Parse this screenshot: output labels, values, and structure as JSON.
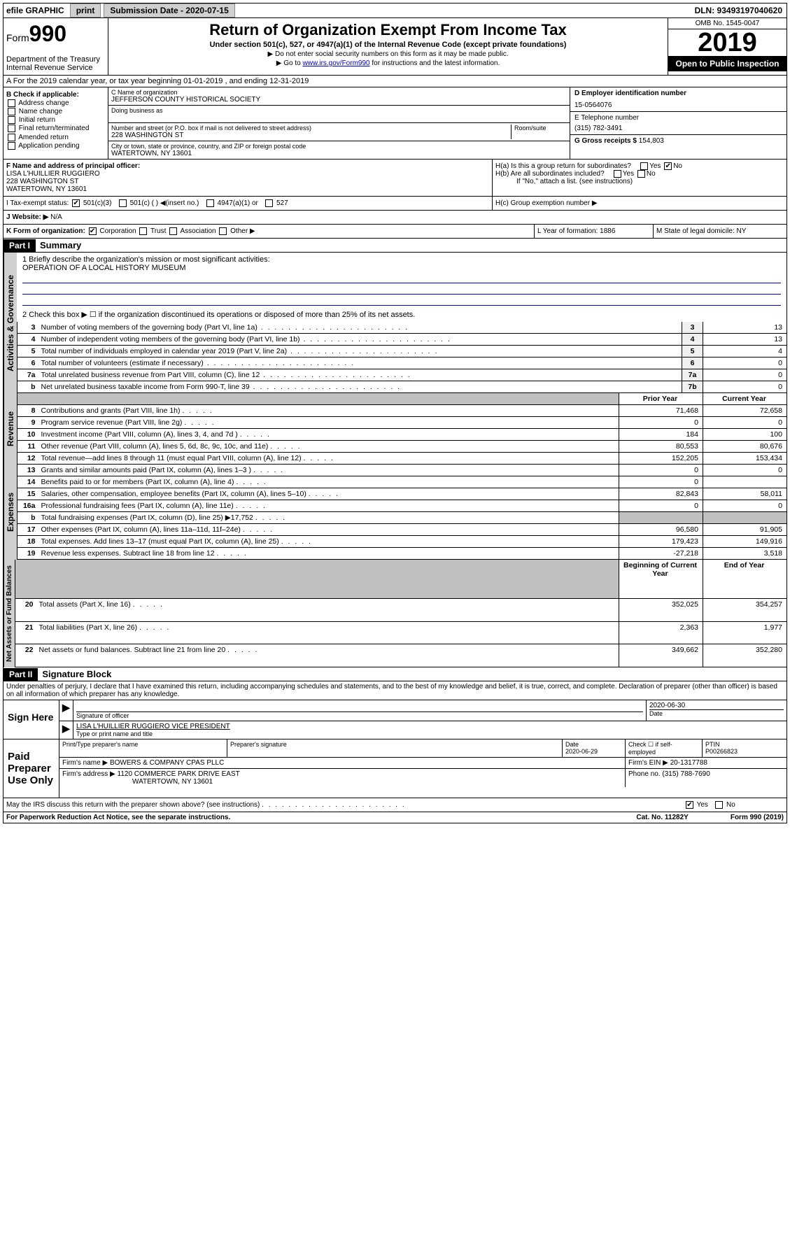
{
  "topbar": {
    "efile": "efile GRAPHIC",
    "print": "print",
    "sub_label": "Submission Date - 2020-07-15",
    "dln": "DLN: 93493197040620"
  },
  "header": {
    "form": "Form",
    "form_num": "990",
    "dept": "Department of the Treasury\nInternal Revenue Service",
    "title": "Return of Organization Exempt From Income Tax",
    "subtitle": "Under section 501(c), 527, or 4947(a)(1) of the Internal Revenue Code (except private foundations)",
    "note1": "▶ Do not enter social security numbers on this form as it may be made public.",
    "note2_pre": "▶ Go to ",
    "note2_link": "www.irs.gov/Form990",
    "note2_post": " for instructions and the latest information.",
    "omb": "OMB No. 1545-0047",
    "year": "2019",
    "open": "Open to Public Inspection"
  },
  "lineA": {
    "text": "A For the 2019 calendar year, or tax year beginning 01-01-2019    , and ending 12-31-2019"
  },
  "boxB": {
    "label": "B Check if applicable:",
    "opts": [
      "Address change",
      "Name change",
      "Initial return",
      "Final return/terminated",
      "Amended return",
      "Application pending"
    ]
  },
  "boxC": {
    "name_label": "C Name of organization",
    "name": "JEFFERSON COUNTY HISTORICAL SOCIETY",
    "dba_label": "Doing business as",
    "addr_label": "Number and street (or P.O. box if mail is not delivered to street address)",
    "room_label": "Room/suite",
    "addr": "228 WASHINGTON ST",
    "city_label": "City or town, state or province, country, and ZIP or foreign postal code",
    "city": "WATERTOWN, NY  13601"
  },
  "boxD": {
    "label": "D Employer identification number",
    "val": "15-0564076"
  },
  "boxE": {
    "label": "E Telephone number",
    "val": "(315) 782-3491"
  },
  "boxG": {
    "label": "G Gross receipts $",
    "val": "154,803"
  },
  "boxF": {
    "label": "F Name and address of principal officer:",
    "name": "LISA L'HUILLIER RUGGIERO",
    "addr1": "228 WASHINGTON ST",
    "addr2": "WATERTOWN, NY  13601"
  },
  "boxH": {
    "a": "H(a)  Is this a group return for subordinates?",
    "b": "H(b)  Are all subordinates included?",
    "b_note": "If \"No,\" attach a list. (see instructions)",
    "c": "H(c)  Group exemption number ▶"
  },
  "boxI": {
    "label": "I   Tax-exempt status:",
    "opts": [
      "501(c)(3)",
      "501(c) (  ) ◀(insert no.)",
      "4947(a)(1) or",
      "527"
    ]
  },
  "boxJ": {
    "label": "J   Website: ▶",
    "val": "N/A"
  },
  "boxK": {
    "label": "K Form of organization:",
    "opts": [
      "Corporation",
      "Trust",
      "Association",
      "Other ▶"
    ],
    "L": "L Year of formation: 1886",
    "M": "M State of legal domicile: NY"
  },
  "partI": {
    "num": "Part I",
    "title": "Summary"
  },
  "mission": {
    "line1_label": "1  Briefly describe the organization's mission or most significant activities:",
    "text": "OPERATION OF A LOCAL HISTORY MUSEUM",
    "line2": "2   Check this box ▶ ☐  if the organization discontinued its operations or disposed of more than 25% of its net assets."
  },
  "vtabs": {
    "gov": "Activities & Governance",
    "rev": "Revenue",
    "exp": "Expenses",
    "net": "Net Assets or Fund Balances"
  },
  "rows_gov": [
    {
      "n": "3",
      "t": "Number of voting members of the governing body (Part VI, line 1a)",
      "b": "3",
      "v": "13"
    },
    {
      "n": "4",
      "t": "Number of independent voting members of the governing body (Part VI, line 1b)",
      "b": "4",
      "v": "13"
    },
    {
      "n": "5",
      "t": "Total number of individuals employed in calendar year 2019 (Part V, line 2a)",
      "b": "5",
      "v": "4"
    },
    {
      "n": "6",
      "t": "Total number of volunteers (estimate if necessary)",
      "b": "6",
      "v": "0"
    },
    {
      "n": "7a",
      "t": "Total unrelated business revenue from Part VIII, column (C), line 12",
      "b": "7a",
      "v": "0"
    },
    {
      "n": "b",
      "t": "Net unrelated business taxable income from Form 990-T, line 39",
      "b": "7b",
      "v": "0"
    }
  ],
  "col_headers": {
    "py": "Prior Year",
    "cy": "Current Year",
    "by": "Beginning of Current Year",
    "ey": "End of Year"
  },
  "rows_rev": [
    {
      "n": "8",
      "t": "Contributions and grants (Part VIII, line 1h)",
      "py": "71,468",
      "cy": "72,658"
    },
    {
      "n": "9",
      "t": "Program service revenue (Part VIII, line 2g)",
      "py": "0",
      "cy": "0"
    },
    {
      "n": "10",
      "t": "Investment income (Part VIII, column (A), lines 3, 4, and 7d )",
      "py": "184",
      "cy": "100"
    },
    {
      "n": "11",
      "t": "Other revenue (Part VIII, column (A), lines 5, 6d, 8c, 9c, 10c, and 11e)",
      "py": "80,553",
      "cy": "80,676"
    },
    {
      "n": "12",
      "t": "Total revenue—add lines 8 through 11 (must equal Part VIII, column (A), line 12)",
      "py": "152,205",
      "cy": "153,434"
    }
  ],
  "rows_exp": [
    {
      "n": "13",
      "t": "Grants and similar amounts paid (Part IX, column (A), lines 1–3 )",
      "py": "0",
      "cy": "0"
    },
    {
      "n": "14",
      "t": "Benefits paid to or for members (Part IX, column (A), line 4)",
      "py": "0",
      "cy": ""
    },
    {
      "n": "15",
      "t": "Salaries, other compensation, employee benefits (Part IX, column (A), lines 5–10)",
      "py": "82,843",
      "cy": "58,011"
    },
    {
      "n": "16a",
      "t": "Professional fundraising fees (Part IX, column (A), line 11e)",
      "py": "0",
      "cy": "0"
    },
    {
      "n": "b",
      "t": "Total fundraising expenses (Part IX, column (D), line 25) ▶17,752",
      "py": "",
      "cy": "",
      "shade": true
    },
    {
      "n": "17",
      "t": "Other expenses (Part IX, column (A), lines 11a–11d, 11f–24e)",
      "py": "96,580",
      "cy": "91,905"
    },
    {
      "n": "18",
      "t": "Total expenses. Add lines 13–17 (must equal Part IX, column (A), line 25)",
      "py": "179,423",
      "cy": "149,916"
    },
    {
      "n": "19",
      "t": "Revenue less expenses. Subtract line 18 from line 12",
      "py": "-27,218",
      "cy": "3,518"
    }
  ],
  "rows_net": [
    {
      "n": "20",
      "t": "Total assets (Part X, line 16)",
      "py": "352,025",
      "cy": "354,257"
    },
    {
      "n": "21",
      "t": "Total liabilities (Part X, line 26)",
      "py": "2,363",
      "cy": "1,977"
    },
    {
      "n": "22",
      "t": "Net assets or fund balances. Subtract line 21 from line 20",
      "py": "349,662",
      "cy": "352,280"
    }
  ],
  "partII": {
    "num": "Part II",
    "title": "Signature Block"
  },
  "perjury": "Under penalties of perjury, I declare that I have examined this return, including accompanying schedules and statements, and to the best of my knowledge and belief, it is true, correct, and complete. Declaration of preparer (other than officer) is based on all information of which preparer has any knowledge.",
  "sign": {
    "here": "Sign Here",
    "sig_label": "Signature of officer",
    "date": "2020-06-30",
    "date_label": "Date",
    "name": "LISA L'HUILLIER RUGGIERO  VICE PRESIDENT",
    "name_label": "Type or print name and title"
  },
  "paid": {
    "label": "Paid Preparer Use Only",
    "h1": "Print/Type preparer's name",
    "h2": "Preparer's signature",
    "h3": "Date",
    "h3v": "2020-06-29",
    "h4": "Check ☐ if self-employed",
    "h5": "PTIN",
    "h5v": "P00266823",
    "firm_label": "Firm's name   ▶",
    "firm": "BOWERS & COMPANY CPAS PLLC",
    "ein_label": "Firm's EIN ▶",
    "ein": "20-1317788",
    "addr_label": "Firm's address ▶",
    "addr": "1120 COMMERCE PARK DRIVE EAST",
    "addr2": "WATERTOWN, NY  13601",
    "phone_label": "Phone no.",
    "phone": "(315) 788-7690"
  },
  "discuss": "May the IRS discuss this return with the preparer shown above? (see instructions)",
  "footer": {
    "pra": "For Paperwork Reduction Act Notice, see the separate instructions.",
    "cat": "Cat. No. 11282Y",
    "form": "Form 990 (2019)"
  }
}
